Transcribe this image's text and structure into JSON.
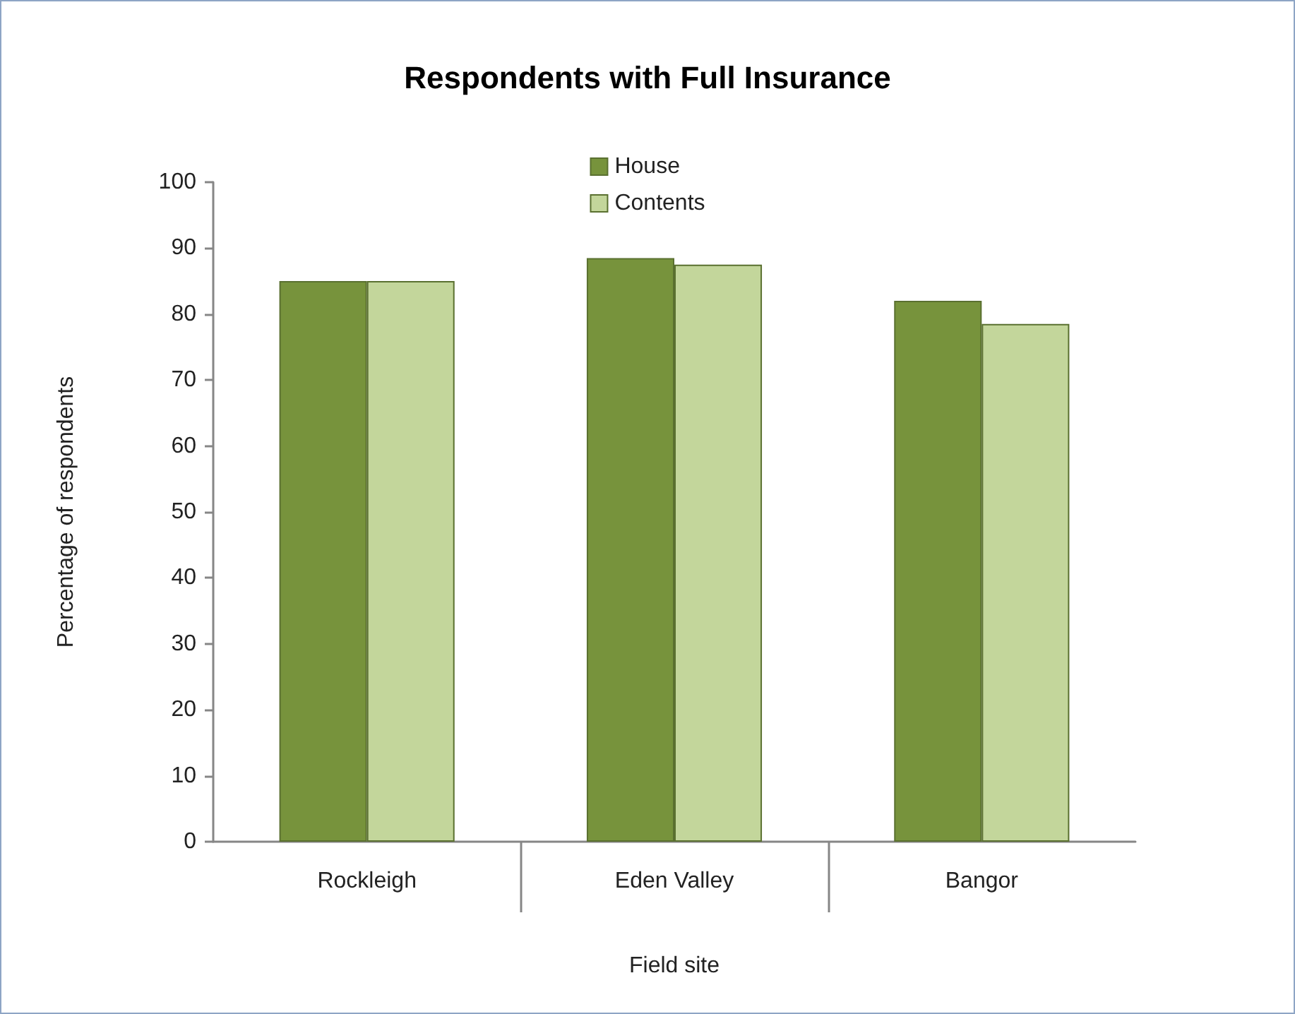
{
  "chart_data": {
    "type": "bar",
    "title": "Respondents with Full Insurance",
    "xlabel": "Field site",
    "ylabel": "Percentage of respondents",
    "categories": [
      "Rockleigh",
      "Eden Valley",
      "Bangor"
    ],
    "series": [
      {
        "name": "House",
        "color": "#77933c",
        "values": [
          85,
          88.5,
          82
        ]
      },
      {
        "name": "Contents",
        "color": "#c3d69b",
        "values": [
          85,
          87.5,
          78.5
        ]
      }
    ],
    "ylim": [
      0,
      100
    ],
    "yticks": [
      0,
      10,
      20,
      30,
      40,
      50,
      60,
      70,
      80,
      90,
      100
    ],
    "grid": false,
    "legend": "top"
  }
}
